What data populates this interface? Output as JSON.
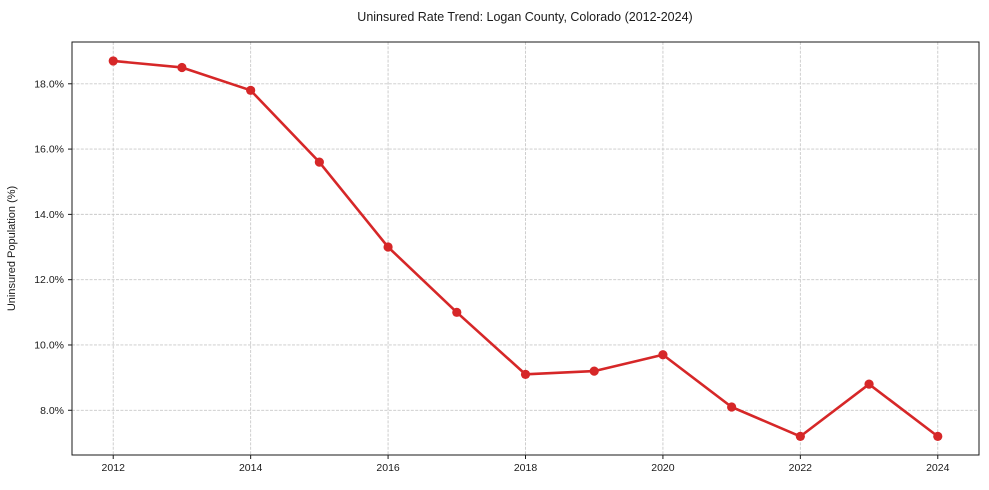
{
  "figure": {
    "background": "#ffffff",
    "spine_color": "#1a1a1a",
    "text_color": "#1a1a1a"
  },
  "chart_data": {
    "type": "line",
    "title": "Uninsured Rate Trend: Logan County, Colorado (2012-2024)",
    "xlabel": "",
    "ylabel": "Uninsured Population (%)",
    "x": [
      2012,
      2013,
      2014,
      2015,
      2016,
      2017,
      2018,
      2019,
      2020,
      2021,
      2022,
      2023,
      2024
    ],
    "values": [
      18.7,
      18.5,
      17.8,
      15.6,
      13.0,
      11.0,
      9.1,
      9.2,
      9.7,
      8.1,
      7.2,
      8.8,
      7.2
    ],
    "xlim": [
      2011.4,
      2024.6
    ],
    "ylim": [
      6.63,
      19.28
    ],
    "x_ticks": [
      2012,
      2014,
      2016,
      2018,
      2020,
      2022,
      2024
    ],
    "y_ticks": [
      8.0,
      10.0,
      12.0,
      14.0,
      16.0,
      18.0
    ],
    "y_tick_labels": [
      "8.0%",
      "10.0%",
      "12.0%",
      "14.0%",
      "16.0%",
      "18.0%"
    ],
    "line_color": "#d62728",
    "marker": "circle",
    "marker_size": 4.6,
    "line_width": 2.6,
    "grid": true,
    "grid_style": "dashed",
    "grid_color": "#c9c9c9",
    "legend": "none"
  }
}
